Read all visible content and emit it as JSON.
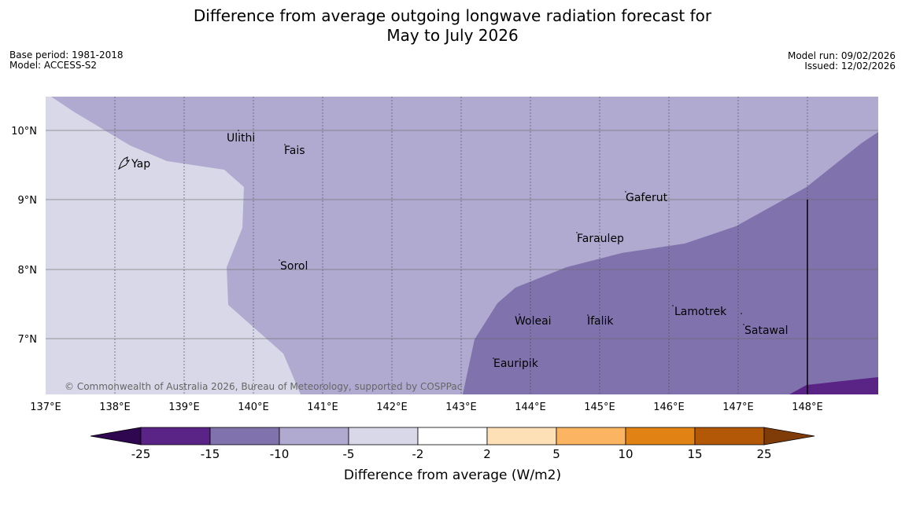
{
  "title": {
    "line1": "Difference from average outgoing longwave radiation forecast for",
    "line2": "May to July 2026"
  },
  "meta": {
    "base_period": "Base period: 1981-2018",
    "model": "Model: ACCESS-S2",
    "model_run": "Model run: 09/02/2026",
    "issued": "Issued: 12/02/2026"
  },
  "map": {
    "lon_ticks": [
      "137°E",
      "138°E",
      "139°E",
      "140°E",
      "141°E",
      "142°E",
      "143°E",
      "144°E",
      "145°E",
      "146°E",
      "147°E",
      "148°E"
    ],
    "lat_ticks": [
      "10°N",
      "9°N",
      "8°N",
      "7°N"
    ],
    "places": [
      "Yap",
      "Ulithi",
      "Fais",
      "Gaferut",
      "Faraulep",
      "Sorol",
      "Lamotrek",
      "Woleai",
      "Ifalik",
      "Satawal",
      "Eauripik"
    ],
    "copyright": "© Commonwealth of Australia 2026, Bureau of Meteorology, supported by COSPPac",
    "colors": {
      "band_minus2_to_minus5": "#d8d8e8",
      "band_minus5_to_minus10": "#b0aad0",
      "band_minus10_to_minus15": "#8072ac",
      "band_minus15_to_minus25": "#5a2386"
    }
  },
  "legend": {
    "ticks": [
      "-25",
      "-15",
      "-10",
      "-5",
      "-2",
      "2",
      "5",
      "10",
      "15",
      "25"
    ],
    "colors": [
      "#2e0750",
      "#5a2386",
      "#8072ac",
      "#b0aad0",
      "#d8d8e8",
      "#ffffff",
      "#fde0b6",
      "#fbb461",
      "#e08214",
      "#b35806",
      "#7f3b08"
    ],
    "label": "Difference from average (W/m2)"
  }
}
